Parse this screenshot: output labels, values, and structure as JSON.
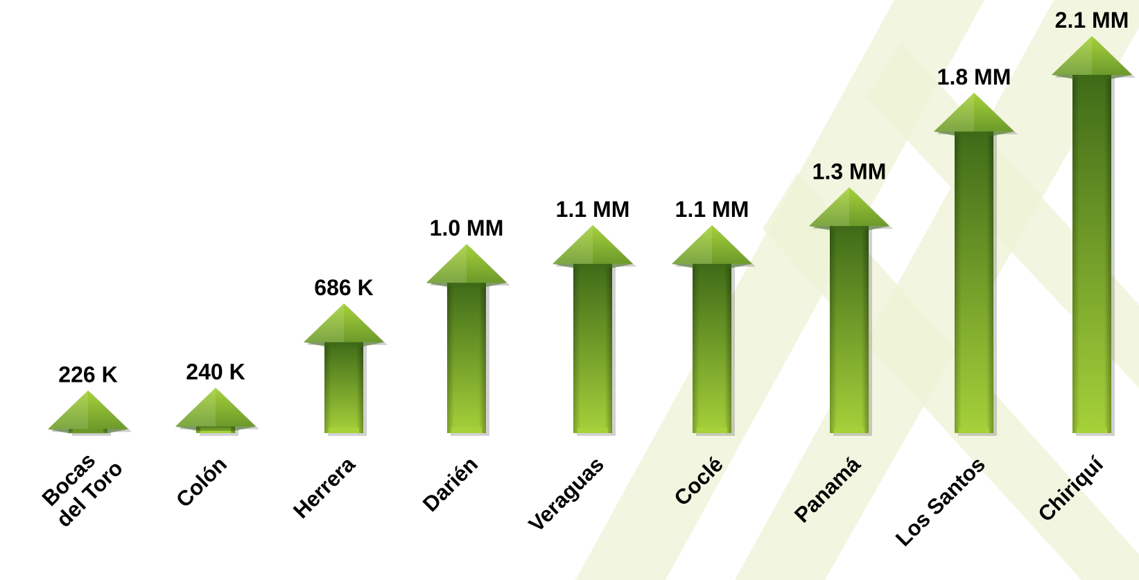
{
  "chart_data": {
    "type": "bar",
    "style": "upward-arrows",
    "categories": [
      "Bocas del Toro",
      "Colón",
      "Herrera",
      "Darién",
      "Veraguas",
      "Coclé",
      "Panamá",
      "Los Santos",
      "Chiriquí"
    ],
    "category_lines": [
      [
        "Bocas",
        "del Toro"
      ],
      [
        "Colón"
      ],
      [
        "Herrera"
      ],
      [
        "Darién"
      ],
      [
        "Veraguas"
      ],
      [
        "Coclé"
      ],
      [
        "Panamá"
      ],
      [
        "Los Santos"
      ],
      [
        "Chiriquí"
      ]
    ],
    "values": [
      226000,
      240000,
      686000,
      1000000,
      1100000,
      1100000,
      1300000,
      1800000,
      2100000
    ],
    "data_labels": [
      "226 K",
      "240 K",
      "686 K",
      "1.0 MM",
      "1.1 MM",
      "1.1 MM",
      "1.3 MM",
      "1.8 MM",
      "2.1 MM"
    ],
    "title": "",
    "xlabel": "",
    "ylabel": "",
    "grid": false,
    "colors": {
      "arrow_light": "#a6d13a",
      "arrow_mid": "#6c9a2a",
      "arrow_dark": "#3e6a18",
      "background_stripes": "#eef3d6"
    }
  }
}
